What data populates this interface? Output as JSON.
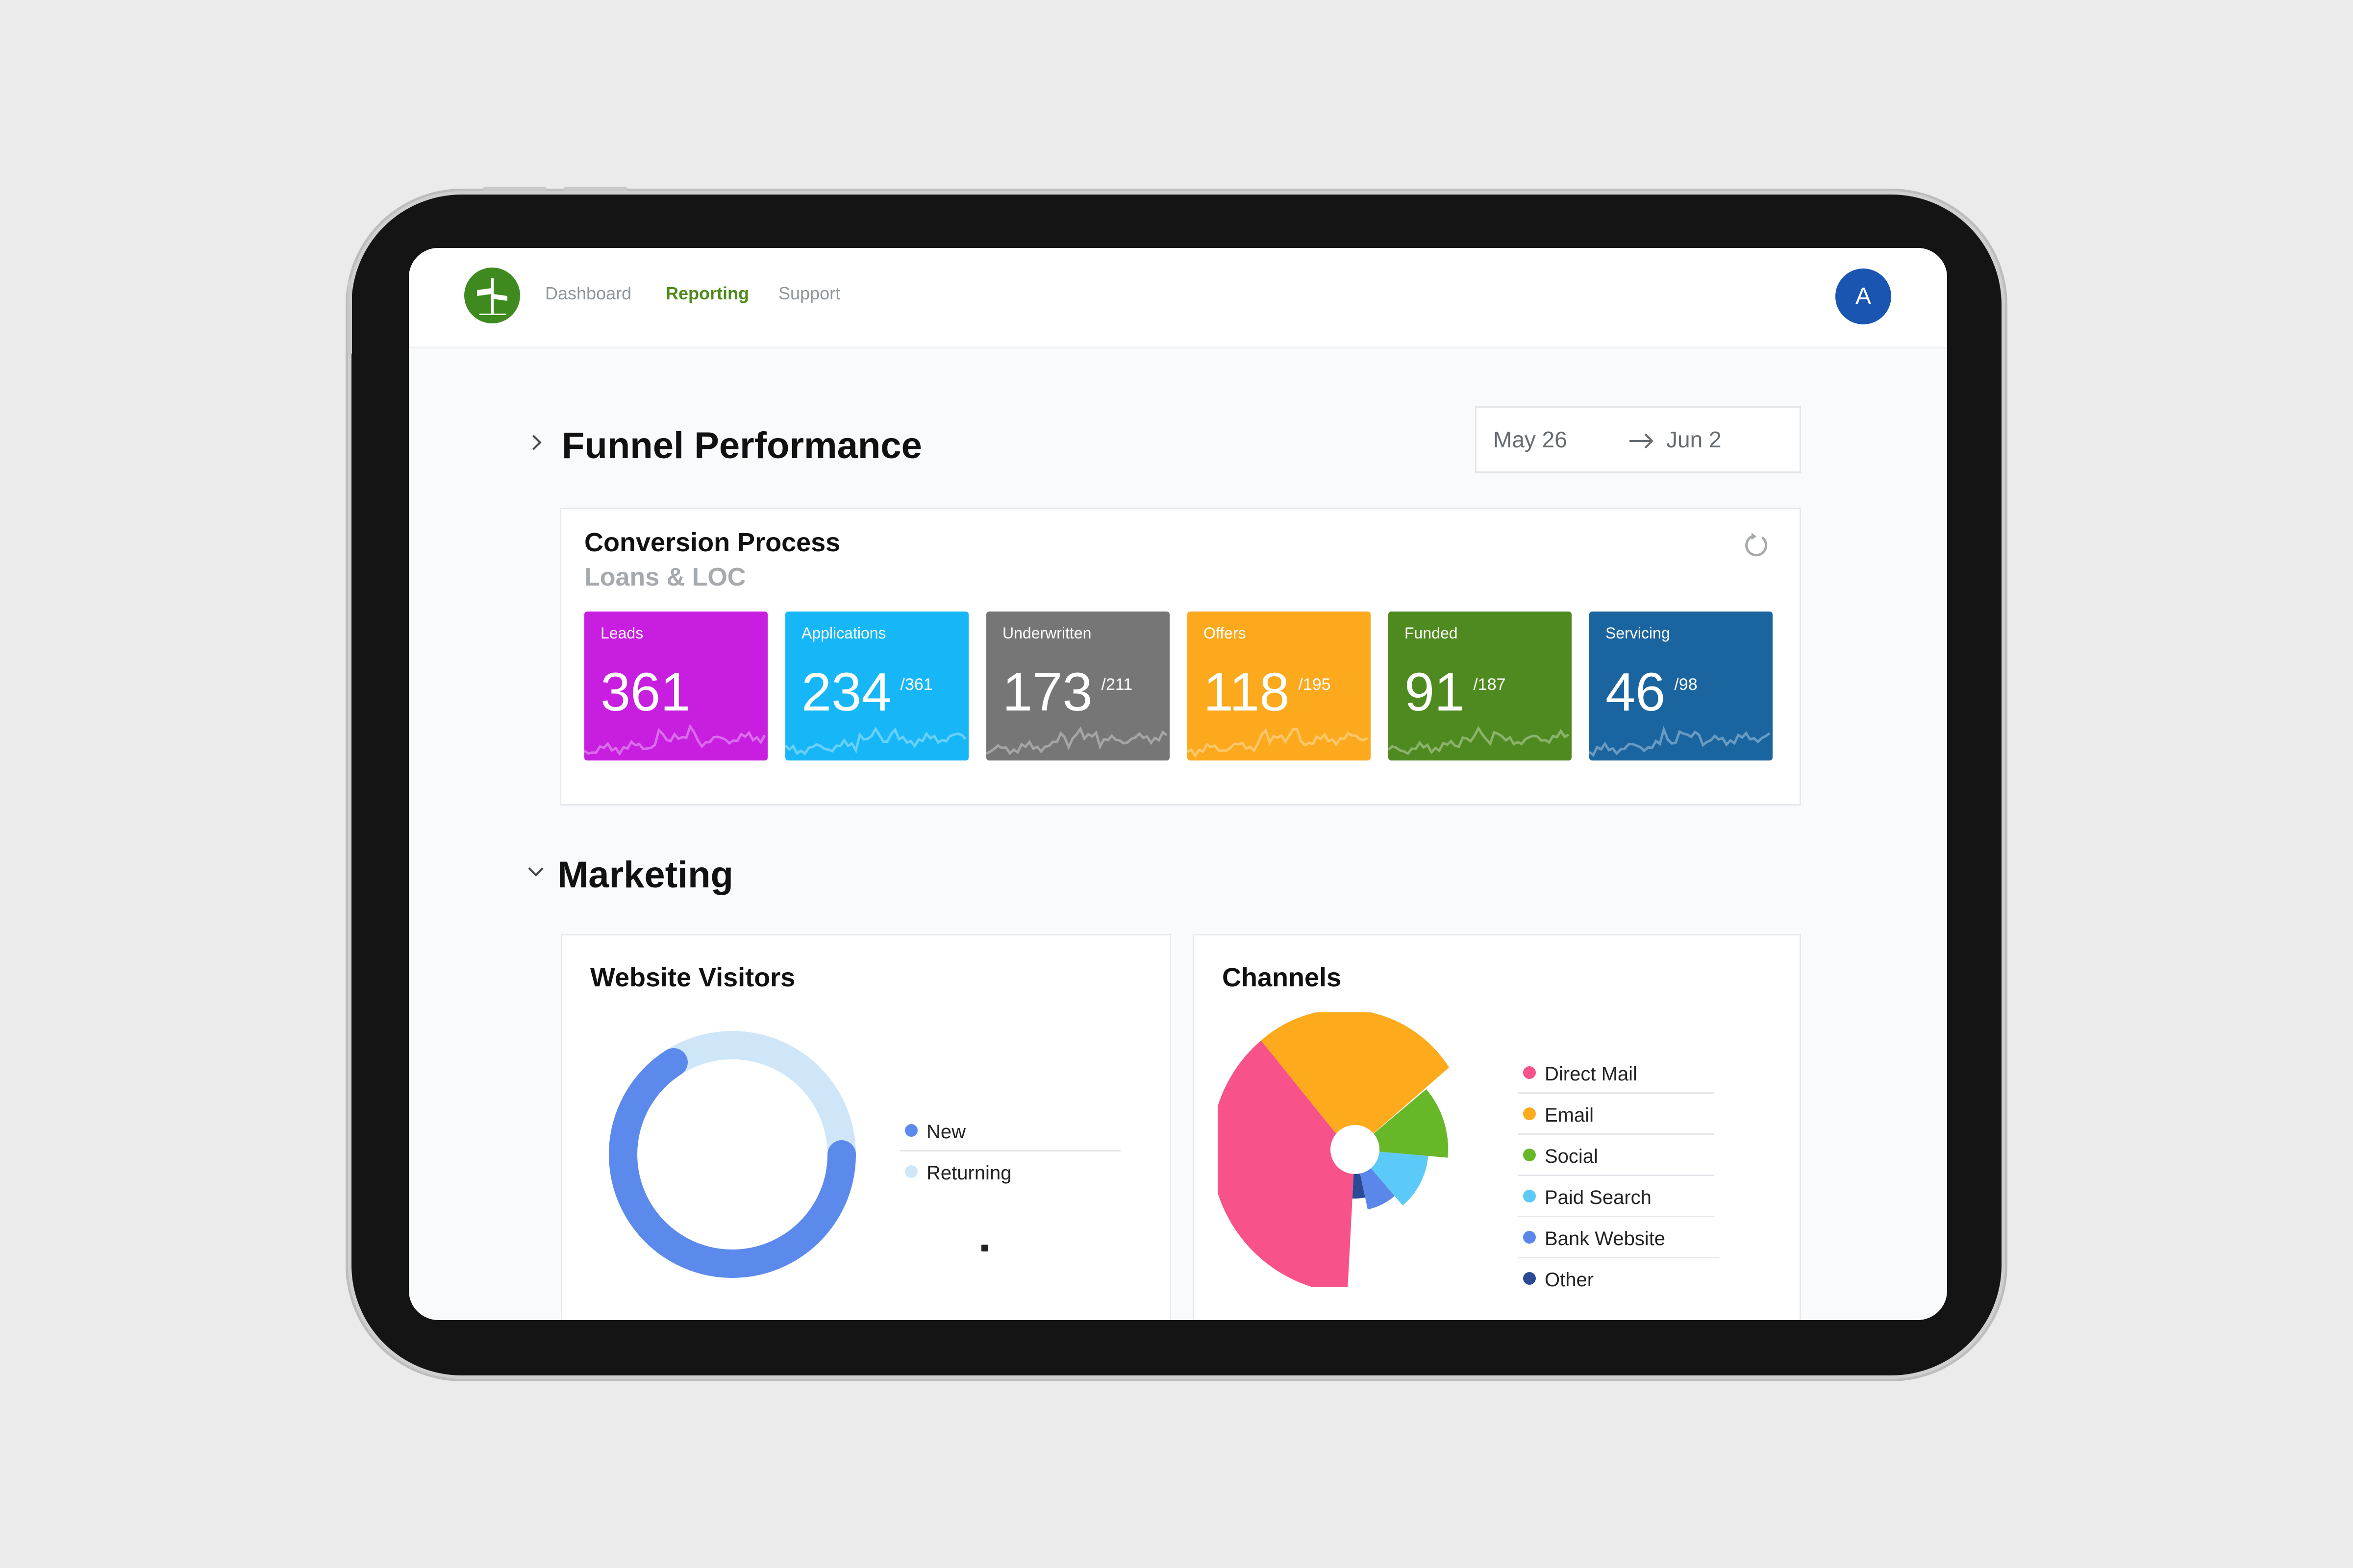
{
  "nav": {
    "items": [
      {
        "label": "Dashboard",
        "active": false
      },
      {
        "label": "Reporting",
        "active": true
      },
      {
        "label": "Support",
        "active": false
      }
    ],
    "avatar_initial": "A"
  },
  "funnel": {
    "title": "Funnel Performance",
    "date_start": "May 26",
    "date_end": "Jun 2",
    "card_title": "Conversion Process",
    "card_subtitle": "Loans & LOC",
    "stages": [
      {
        "label": "Leads",
        "value": "361",
        "total": "",
        "color": "#c71ee0"
      },
      {
        "label": "Applications",
        "value": "234",
        "total": "/361",
        "color": "#17b7f7"
      },
      {
        "label": "Underwritten",
        "value": "173",
        "total": "/211",
        "color": "#767676"
      },
      {
        "label": "Offers",
        "value": "118",
        "total": "/195",
        "color": "#fca91d"
      },
      {
        "label": "Funded",
        "value": "91",
        "total": "/187",
        "color": "#4e8a1f"
      },
      {
        "label": "Servicing",
        "value": "46",
        "total": "/98",
        "color": "#1a65a0"
      }
    ]
  },
  "marketing": {
    "title": "Marketing",
    "visitors": {
      "title": "Website Visitors",
      "legend": [
        {
          "label": "New",
          "color": "#5c8aec"
        },
        {
          "label": "Returning",
          "color": "#cfe6f8"
        }
      ]
    },
    "channels": {
      "title": "Channels",
      "legend": [
        {
          "label": "Direct Mail",
          "color": "#f7528a"
        },
        {
          "label": "Email",
          "color": "#fdaa1c"
        },
        {
          "label": "Social",
          "color": "#66b829"
        },
        {
          "label": "Paid Search",
          "color": "#5ccaf8"
        },
        {
          "label": "Bank Website",
          "color": "#5b87ea"
        },
        {
          "label": "Other",
          "color": "#2b4a96"
        }
      ]
    }
  }
}
